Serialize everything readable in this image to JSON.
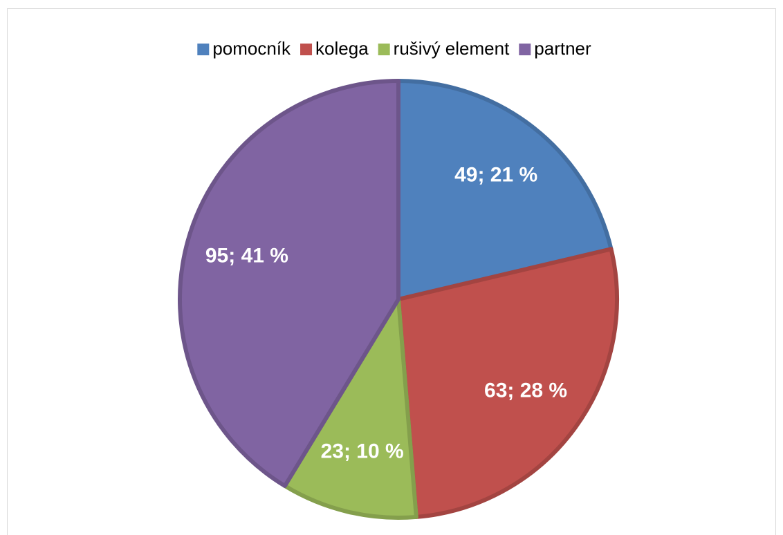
{
  "chart_data": {
    "type": "pie",
    "categories": [
      "pomocník",
      "kolega",
      "rušivý element",
      "partner"
    ],
    "values": [
      49,
      63,
      23,
      95
    ],
    "value_labels": [
      "49; 21 %",
      "63; 28 %",
      "23; 10 %",
      "95; 41 %"
    ],
    "colors": [
      "#4f81bd",
      "#c0504d",
      "#9bbb59",
      "#8064a2"
    ],
    "legend": "top"
  }
}
